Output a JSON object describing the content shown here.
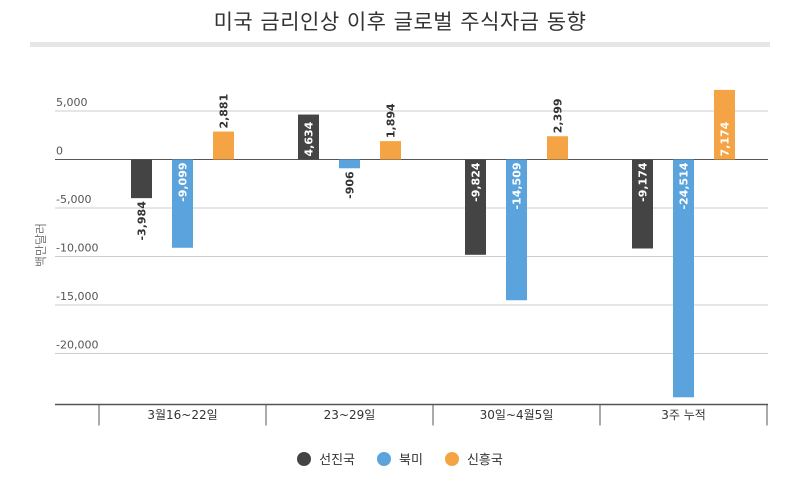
{
  "chart_data": {
    "type": "bar",
    "title": "미국 금리인상 이후 글로벌 주식자금 동향",
    "ylabel": "백만달러",
    "xlabel": "",
    "categories": [
      "3월16~22일",
      "23~29일",
      "30일~4월5일",
      "3주 누적"
    ],
    "series": [
      {
        "name": "선진국",
        "color": "#444444",
        "values": [
          -3984,
          4634,
          -9824,
          -9174
        ],
        "labels": [
          "-3,984",
          "4,634",
          "-9,824",
          "-9,174"
        ]
      },
      {
        "name": "북미",
        "color": "#5ba3dc",
        "values": [
          -9099,
          -906,
          -14509,
          -24514
        ],
        "labels": [
          "-9,099",
          "-906",
          "-14,509",
          "-24,514"
        ]
      },
      {
        "name": "신흥국",
        "color": "#f4a444",
        "values": [
          2881,
          1894,
          2399,
          7174
        ],
        "labels": [
          "2,881",
          "1,894",
          "2,399",
          "7,174"
        ]
      }
    ],
    "yticks": [
      5000,
      0,
      -5000,
      -10000,
      -15000,
      -20000
    ],
    "ytick_labels": [
      "5,000",
      "0",
      "-5,000",
      "-10,000",
      "-15,000",
      "-20,000"
    ],
    "ylim": [
      -25000,
      7500
    ],
    "grid": true,
    "legend": "bottom"
  }
}
